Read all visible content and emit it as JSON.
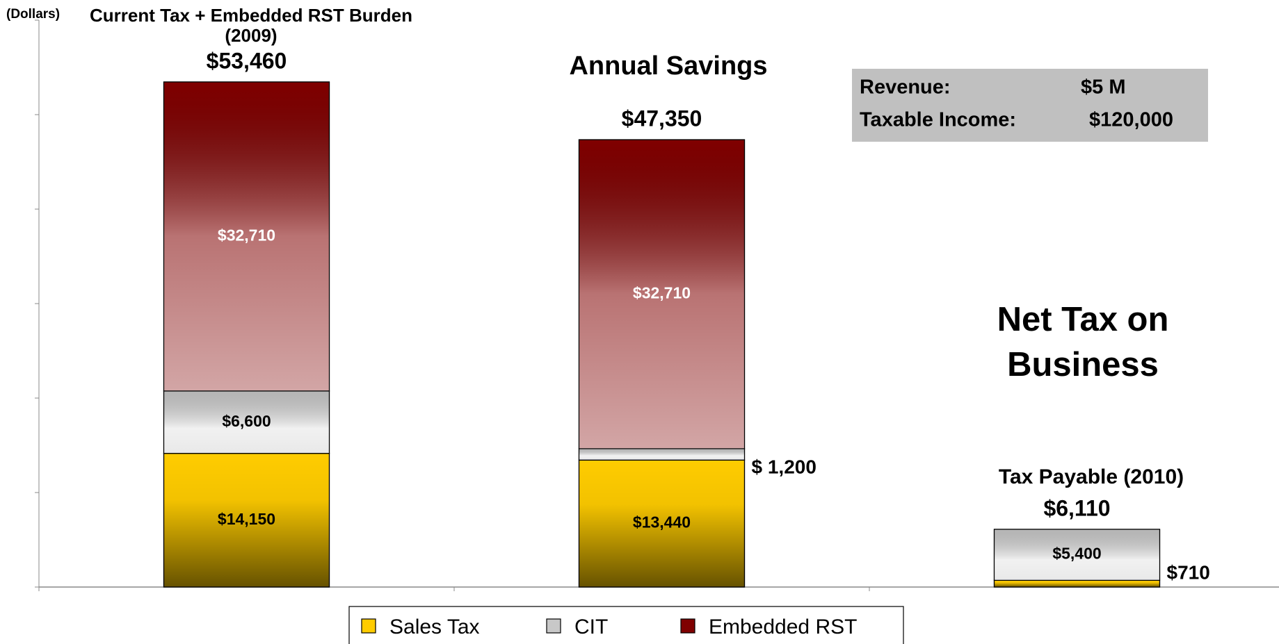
{
  "chart_data": {
    "type": "stacked_bar",
    "y_label": "(Dollars)",
    "categories": [
      "Current Tax + Embedded RST Burden (2009)",
      "Annual Savings",
      "Tax Payable (2010)"
    ],
    "series": [
      {
        "name": "Sales Tax",
        "color": "#ffcc00",
        "values": [
          14150,
          13440,
          710
        ],
        "value_labels": [
          "$14,150",
          "$13,440",
          "$710"
        ]
      },
      {
        "name": "CIT",
        "color": "#c8c8c8",
        "values": [
          6600,
          1200,
          5400
        ],
        "value_labels": [
          "$6,600",
          "$ 1,200",
          "$5,400"
        ]
      },
      {
        "name": "Embedded RST",
        "color": "#800000",
        "values": [
          32710,
          32710,
          null
        ],
        "value_labels": [
          "$32,710",
          "$32,710",
          null
        ]
      }
    ],
    "totals": [
      53460,
      47350,
      6110
    ],
    "total_labels": [
      "$53,460",
      "$47,350",
      "$6,110"
    ],
    "ylim": [
      0,
      60000
    ],
    "yticks": [
      0,
      10000,
      20000,
      30000,
      40000,
      50000,
      60000
    ],
    "info_box": {
      "rows": [
        [
          "Revenue:",
          "$5 M"
        ],
        [
          "Taxable Income:",
          "$120,000"
        ]
      ]
    },
    "annotation": [
      "Net Tax on",
      "Business"
    ]
  }
}
